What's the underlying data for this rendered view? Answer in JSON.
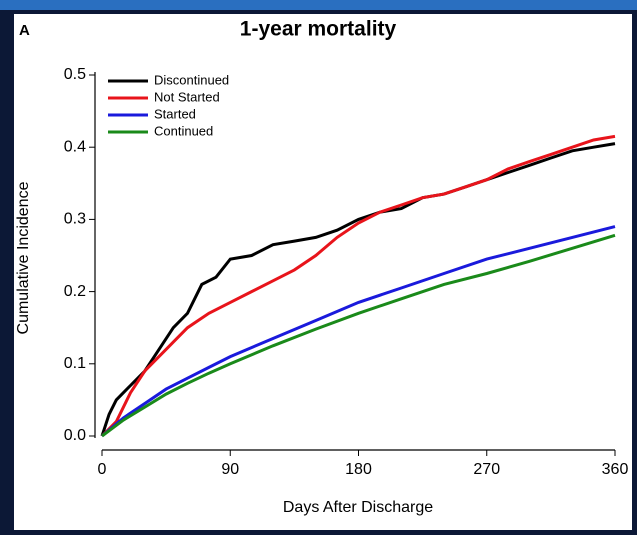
{
  "chart_data": {
    "type": "line",
    "panel_label": "A",
    "title": "1-year mortality",
    "x_label": "Days After Discharge",
    "y_label": "Cumulative Incidence",
    "xlim": [
      0,
      360
    ],
    "xticks": [
      0,
      90,
      180,
      270,
      360
    ],
    "ylim": [
      0,
      0.5
    ],
    "yticks": [
      {
        "value": 0,
        "label": "0.0"
      },
      0.1,
      0.2,
      0.3,
      0.4,
      0.5
    ],
    "legend": "upper left",
    "series": [
      {
        "name": "Discontinued",
        "color": "#000000",
        "x": [
          0,
          5,
          10,
          20,
          30,
          40,
          50,
          60,
          70,
          80,
          90,
          105,
          120,
          135,
          150,
          165,
          180,
          195,
          210,
          225,
          240,
          255,
          270,
          285,
          300,
          315,
          330,
          345,
          360
        ],
        "values": [
          0,
          0.03,
          0.05,
          0.07,
          0.09,
          0.12,
          0.15,
          0.17,
          0.21,
          0.22,
          0.245,
          0.25,
          0.265,
          0.27,
          0.275,
          0.285,
          0.3,
          0.31,
          0.315,
          0.33,
          0.335,
          0.345,
          0.355,
          0.365,
          0.375,
          0.385,
          0.395,
          0.4,
          0.405
        ]
      },
      {
        "name": "Not Started",
        "color": "#e8141b",
        "x": [
          0,
          10,
          20,
          30,
          40,
          50,
          60,
          75,
          90,
          105,
          120,
          135,
          150,
          165,
          180,
          195,
          210,
          225,
          240,
          255,
          270,
          285,
          300,
          315,
          330,
          345,
          360
        ],
        "values": [
          0,
          0.02,
          0.06,
          0.09,
          0.11,
          0.13,
          0.15,
          0.17,
          0.185,
          0.2,
          0.215,
          0.23,
          0.25,
          0.275,
          0.295,
          0.31,
          0.32,
          0.33,
          0.335,
          0.345,
          0.355,
          0.37,
          0.38,
          0.39,
          0.4,
          0.41,
          0.415
        ]
      },
      {
        "name": "Started",
        "color": "#1a1adc",
        "x": [
          0,
          15,
          30,
          45,
          60,
          75,
          90,
          120,
          150,
          180,
          210,
          240,
          270,
          300,
          330,
          360
        ],
        "values": [
          0,
          0.025,
          0.045,
          0.065,
          0.08,
          0.095,
          0.11,
          0.135,
          0.16,
          0.185,
          0.205,
          0.225,
          0.245,
          0.26,
          0.275,
          0.29
        ]
      },
      {
        "name": "Continued",
        "color": "#1a8a1a",
        "x": [
          0,
          15,
          30,
          45,
          60,
          75,
          90,
          120,
          150,
          180,
          210,
          240,
          270,
          300,
          330,
          360
        ],
        "values": [
          0,
          0.022,
          0.04,
          0.058,
          0.073,
          0.087,
          0.1,
          0.125,
          0.148,
          0.17,
          0.19,
          0.21,
          0.225,
          0.242,
          0.26,
          0.278
        ]
      }
    ]
  }
}
